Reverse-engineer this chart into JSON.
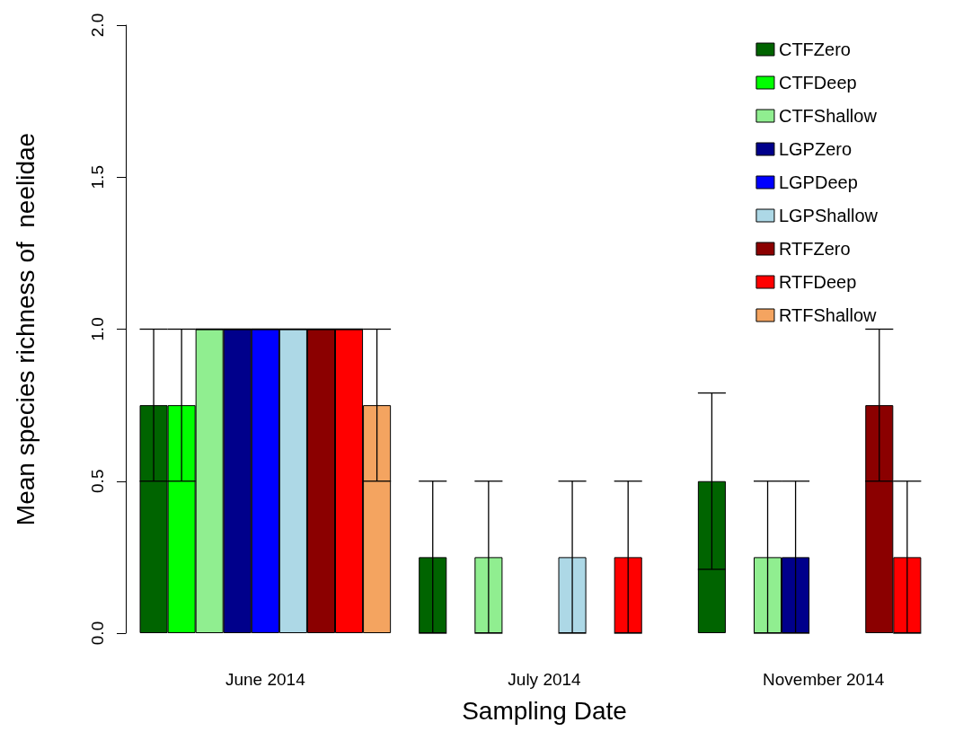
{
  "chart_data": {
    "type": "bar",
    "xlabel": "Sampling Date",
    "ylabel": "Mean species richness of  neelidae",
    "categories": [
      "June 2014",
      "July 2014",
      "November 2014"
    ],
    "ylim": [
      0,
      2
    ],
    "yticks": [
      {
        "value": 0,
        "label": "0.0"
      },
      {
        "value": 0.5,
        "label": "0.5"
      },
      {
        "value": 1,
        "label": "1.0"
      },
      {
        "value": 1.5,
        "label": "1.5"
      },
      {
        "value": 2,
        "label": "2.0"
      }
    ],
    "grid": false,
    "legend": "top right",
    "series": [
      {
        "name": "CTFZero",
        "color": "#006400",
        "values": [
          0.75,
          0.25,
          0.5
        ],
        "errors": [
          [
            0.5,
            1
          ],
          [
            0,
            0.5
          ],
          [
            0.21,
            0.79
          ]
        ]
      },
      {
        "name": "CTFDeep",
        "color": "#00ff00",
        "values": [
          0.75,
          0,
          0
        ],
        "errors": [
          [
            0.5,
            1
          ],
          null,
          null
        ]
      },
      {
        "name": "CTFShallow",
        "color": "#90ee90",
        "values": [
          1,
          0.25,
          0.25
        ],
        "errors": [
          [
            1,
            1
          ],
          [
            0,
            0.5
          ],
          [
            0,
            0.5
          ]
        ]
      },
      {
        "name": "LGPZero",
        "color": "#00008b",
        "values": [
          1,
          0,
          0.25
        ],
        "errors": [
          [
            1,
            1
          ],
          null,
          [
            0,
            0.5
          ]
        ]
      },
      {
        "name": "LGPDeep",
        "color": "#0000ff",
        "values": [
          1,
          0,
          0
        ],
        "errors": [
          [
            1,
            1
          ],
          null,
          null
        ]
      },
      {
        "name": "LGPShallow",
        "color": "#add8e6",
        "values": [
          1,
          0.25,
          0
        ],
        "errors": [
          [
            1,
            1
          ],
          [
            0,
            0.5
          ],
          null
        ]
      },
      {
        "name": "RTFZero",
        "color": "#8b0000",
        "values": [
          1,
          0,
          0.75
        ],
        "errors": [
          [
            1,
            1
          ],
          null,
          [
            0.5,
            1
          ]
        ]
      },
      {
        "name": "RTFDeep",
        "color": "#ff0000",
        "values": [
          1,
          0.25,
          0.25
        ],
        "errors": [
          [
            1,
            1
          ],
          [
            0,
            0.5
          ],
          [
            0,
            0.5
          ]
        ]
      },
      {
        "name": "RTFShallow",
        "color": "#f4a460",
        "values": [
          0.75,
          0,
          0
        ],
        "errors": [
          [
            0.5,
            1
          ],
          null,
          null
        ]
      }
    ]
  }
}
